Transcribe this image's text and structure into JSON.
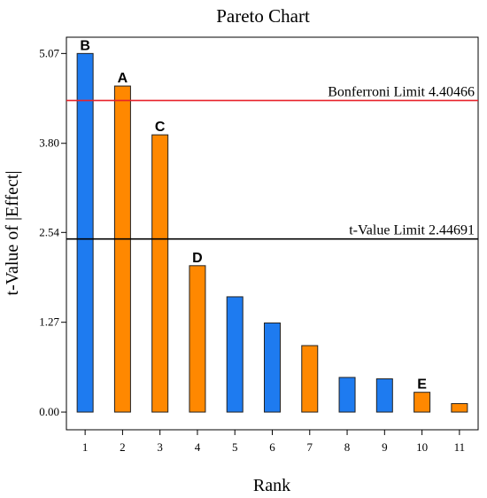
{
  "colors": {
    "blue": "#1e7bf0",
    "orange": "#ff8800",
    "bonferroni_line": "#e8222a",
    "tvalue_line": "#000000",
    "bar_stroke": "#222222"
  },
  "chart_data": {
    "type": "bar",
    "title": "Pareto Chart",
    "xlabel": "Rank",
    "ylabel": "t-Value of |Effect|",
    "categories": [
      "1",
      "2",
      "3",
      "4",
      "5",
      "6",
      "7",
      "8",
      "9",
      "10",
      "11"
    ],
    "values": [
      5.07,
      4.61,
      3.92,
      2.07,
      1.63,
      1.26,
      0.94,
      0.49,
      0.47,
      0.28,
      0.12
    ],
    "bar_colors": [
      "blue",
      "orange",
      "orange",
      "orange",
      "blue",
      "blue",
      "orange",
      "blue",
      "blue",
      "orange",
      "orange"
    ],
    "bar_labels": [
      "B",
      "A",
      "C",
      "D",
      "",
      "",
      "",
      "",
      "",
      "E",
      ""
    ],
    "yticks": [
      "0.00",
      "1.27",
      "2.54",
      "3.80",
      "5.07"
    ],
    "ylim": [
      -0.25,
      5.3
    ],
    "xlim": [
      0.5,
      11.5
    ],
    "reference_lines": [
      {
        "label": "Bonferroni Limit 4.40466",
        "value": 4.40466,
        "color": "bonferroni_line"
      },
      {
        "label": "t-Value Limit 2.44691",
        "value": 2.44691,
        "color": "tvalue_line"
      }
    ],
    "grid": false,
    "legend": "none"
  }
}
